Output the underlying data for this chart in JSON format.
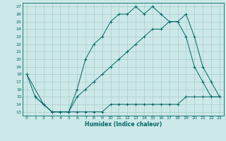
{
  "xlabel": "Humidex (Indice chaleur)",
  "ylabel": "",
  "bg_color": "#cce8e8",
  "grid_color": "#aacccc",
  "line_color": "#006666",
  "xlim": [
    -0.5,
    23.5
  ],
  "ylim": [
    12.5,
    27.5
  ],
  "xticks": [
    0,
    1,
    2,
    3,
    4,
    5,
    6,
    7,
    8,
    9,
    10,
    11,
    12,
    13,
    14,
    15,
    16,
    17,
    18,
    19,
    20,
    21,
    22,
    23
  ],
  "yticks": [
    13,
    14,
    15,
    16,
    17,
    18,
    19,
    20,
    21,
    22,
    23,
    24,
    25,
    26,
    27
  ],
  "line1_x": [
    0,
    1,
    2,
    3,
    4,
    5,
    6,
    7,
    8,
    9,
    10,
    11,
    12,
    13,
    14,
    15,
    16,
    17,
    18,
    19,
    20,
    21,
    22,
    23
  ],
  "line1_y": [
    18,
    15,
    14,
    13,
    13,
    13,
    16,
    20,
    22,
    23,
    25,
    26,
    26,
    27,
    26,
    27,
    26,
    25,
    25,
    23,
    19,
    17,
    15,
    15
  ],
  "line2_x": [
    0,
    2,
    3,
    4,
    5,
    6,
    7,
    8,
    9,
    10,
    11,
    12,
    13,
    14,
    15,
    16,
    17,
    18,
    19,
    20,
    21,
    22,
    23
  ],
  "line2_y": [
    18,
    14,
    13,
    13,
    13,
    15,
    16,
    17,
    18,
    19,
    20,
    21,
    22,
    23,
    24,
    24,
    25,
    25,
    26,
    23,
    19,
    17,
    15
  ],
  "line3_x": [
    1,
    2,
    3,
    4,
    5,
    6,
    7,
    8,
    9,
    10,
    11,
    12,
    13,
    14,
    15,
    16,
    17,
    18,
    19,
    20,
    21,
    22,
    23
  ],
  "line3_y": [
    15,
    14,
    13,
    13,
    13,
    13,
    13,
    13,
    13,
    14,
    14,
    14,
    14,
    14,
    14,
    14,
    14,
    14,
    15,
    15,
    15,
    15,
    15
  ]
}
